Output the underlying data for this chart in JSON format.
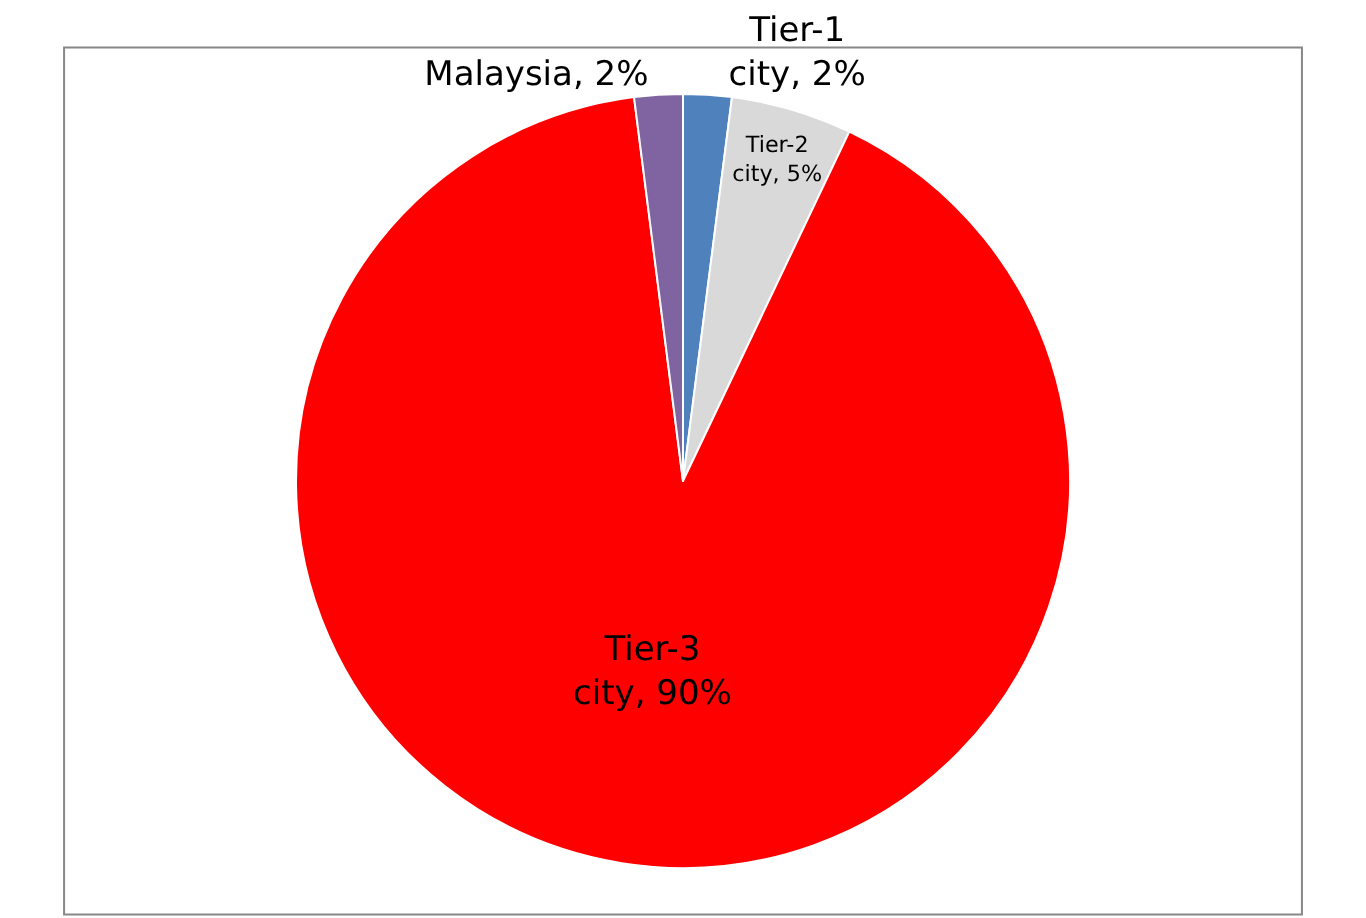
{
  "chart_data": {
    "type": "pie",
    "categories": [
      "Tier-1 city",
      "Tier-2 city",
      "Tier-3 city",
      "Malaysia"
    ],
    "values": [
      2,
      5,
      90,
      2
    ],
    "colors": [
      "#4f81bd",
      "#d9d9d9",
      "#ff0000",
      "#8064a2"
    ],
    "value_labels": [
      "2%",
      "5%",
      "90%",
      "2%"
    ],
    "legend": false
  }
}
